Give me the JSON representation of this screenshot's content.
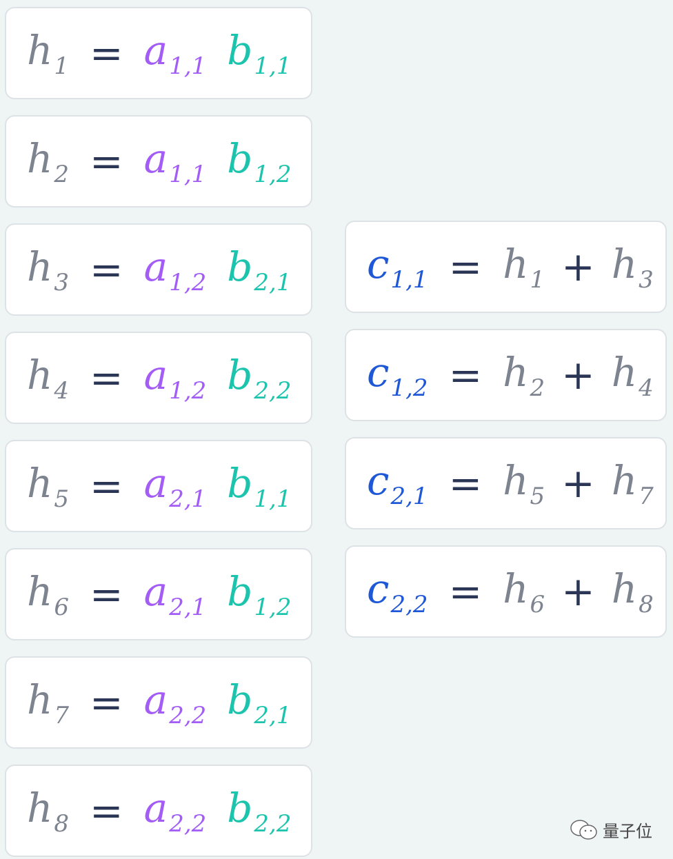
{
  "left": [
    {
      "h": "h",
      "hs": "1",
      "a": "a",
      "as": "1,1",
      "b": "b",
      "bs": "1,1"
    },
    {
      "h": "h",
      "hs": "2",
      "a": "a",
      "as": "1,1",
      "b": "b",
      "bs": "1,2"
    },
    {
      "h": "h",
      "hs": "3",
      "a": "a",
      "as": "1,2",
      "b": "b",
      "bs": "2,1"
    },
    {
      "h": "h",
      "hs": "4",
      "a": "a",
      "as": "1,2",
      "b": "b",
      "bs": "2,2"
    },
    {
      "h": "h",
      "hs": "5",
      "a": "a",
      "as": "2,1",
      "b": "b",
      "bs": "1,1"
    },
    {
      "h": "h",
      "hs": "6",
      "a": "a",
      "as": "2,1",
      "b": "b",
      "bs": "1,2"
    },
    {
      "h": "h",
      "hs": "7",
      "a": "a",
      "as": "2,2",
      "b": "b",
      "bs": "2,1"
    },
    {
      "h": "h",
      "hs": "8",
      "a": "a",
      "as": "2,2",
      "b": "b",
      "bs": "2,2"
    }
  ],
  "right": [
    {
      "c": "c",
      "cs": "1,1",
      "x": "h",
      "xs": "1",
      "y": "h",
      "ys": "3"
    },
    {
      "c": "c",
      "cs": "1,2",
      "x": "h",
      "xs": "2",
      "y": "h",
      "ys": "4"
    },
    {
      "c": "c",
      "cs": "2,1",
      "x": "h",
      "xs": "5",
      "y": "h",
      "ys": "7"
    },
    {
      "c": "c",
      "cs": "2,2",
      "x": "h",
      "xs": "6",
      "y": "h",
      "ys": "8"
    }
  ],
  "symbols": {
    "equals": "=",
    "plus": "+"
  },
  "colors": {
    "h": "#7d838f",
    "a": "#a35cf5",
    "b": "#1cc4ad",
    "c": "#1f58d6",
    "operator": "#2b3656"
  },
  "watermark": {
    "icon": "wechat-icon",
    "text": "量子位"
  }
}
